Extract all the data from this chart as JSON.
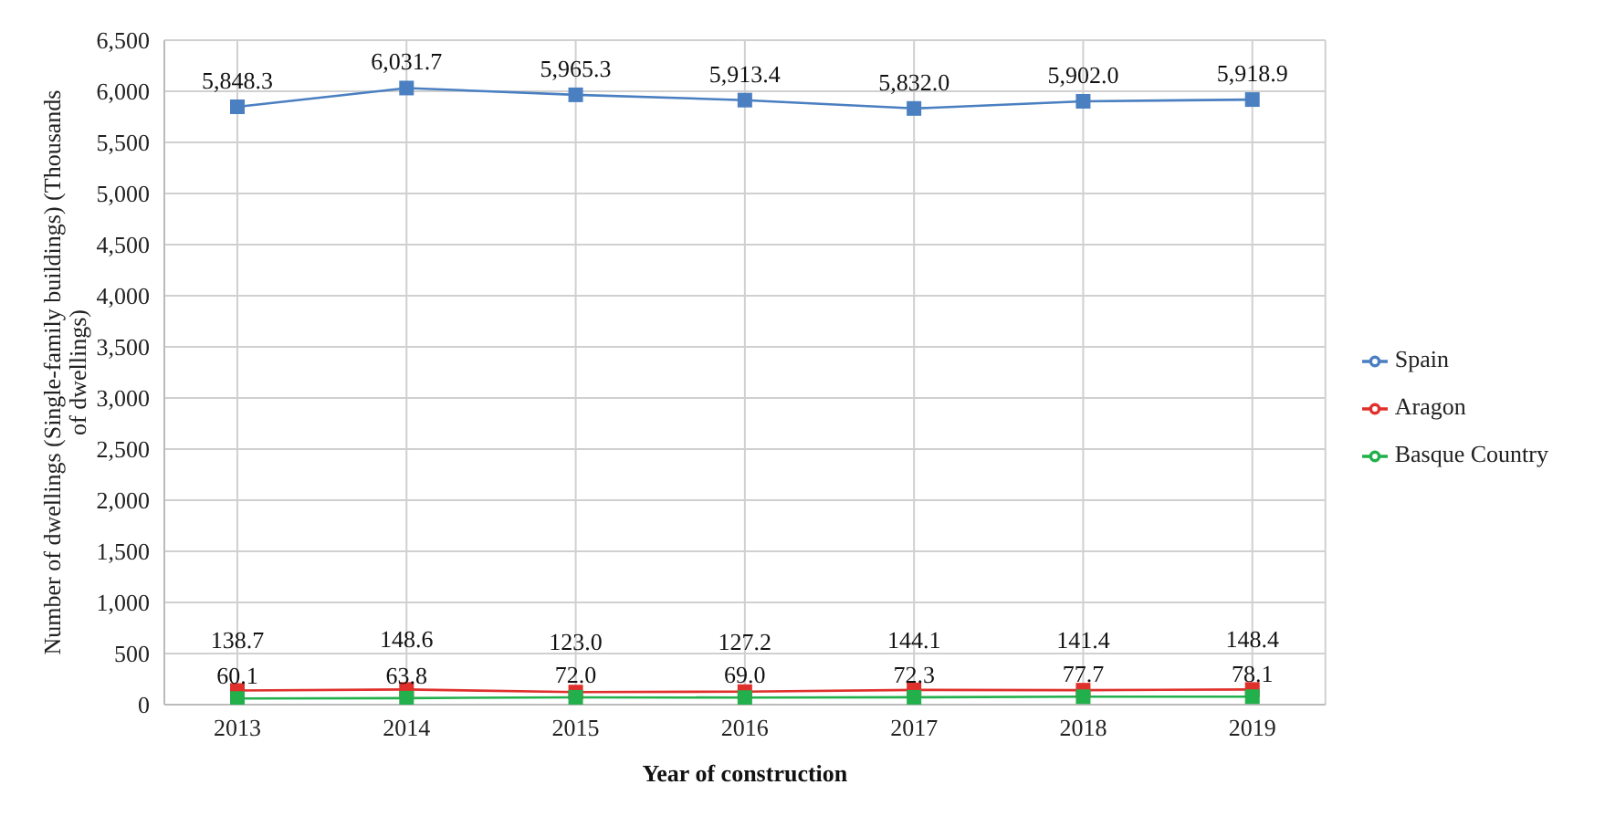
{
  "chart_data": {
    "type": "line",
    "xlabel": "Year of construction",
    "ylabel": "Number of dwellings (Single-family buildings) (Thousands of dwellings)",
    "categories": [
      "2013",
      "2014",
      "2015",
      "2016",
      "2017",
      "2018",
      "2019"
    ],
    "series": [
      {
        "name": "Spain",
        "color": "#4a7fc1",
        "values": [
          5848.3,
          6031.7,
          5965.3,
          5913.4,
          5832.0,
          5902.0,
          5918.9
        ],
        "value_labels": [
          "5,848.3",
          "6,031.7",
          "5,965.3",
          "5,913.4",
          "5,832.0",
          "5,902.0",
          "5,918.9"
        ]
      },
      {
        "name": "Aragon",
        "color": "#e0302c",
        "values": [
          138.7,
          148.6,
          123.0,
          127.2,
          144.1,
          141.4,
          148.4
        ],
        "value_labels": [
          "138.7",
          "148.6",
          "123.0",
          "127.2",
          "144.1",
          "141.4",
          "148.4"
        ]
      },
      {
        "name": "Basque Country",
        "color": "#22b04c",
        "values": [
          60.1,
          63.8,
          72.0,
          69.0,
          72.3,
          77.7,
          78.1
        ],
        "value_labels": [
          "60.1",
          "63.8",
          "72.0",
          "69.0",
          "72.3",
          "77.7",
          "78.1"
        ]
      }
    ],
    "ylim": [
      0,
      6500
    ],
    "yticks": [
      0,
      500,
      {
        "value": 1000,
        "label": "1,000"
      },
      {
        "value": 1500,
        "label": "1,500"
      },
      {
        "value": 2000,
        "label": "2,000"
      },
      {
        "value": 2500,
        "label": "2,500"
      },
      {
        "value": 3000,
        "label": "3,000"
      },
      {
        "value": 3500,
        "label": "3,500"
      },
      {
        "value": 4000,
        "label": "4,000"
      },
      {
        "value": 4500,
        "label": "4,500"
      },
      {
        "value": 5000,
        "label": "5,000"
      },
      {
        "value": 5500,
        "label": "5,500"
      },
      {
        "value": 6000,
        "label": "6,000"
      },
      {
        "value": 6500,
        "label": "6,500"
      }
    ],
    "grid": true,
    "legend": "right",
    "marker": "square"
  }
}
